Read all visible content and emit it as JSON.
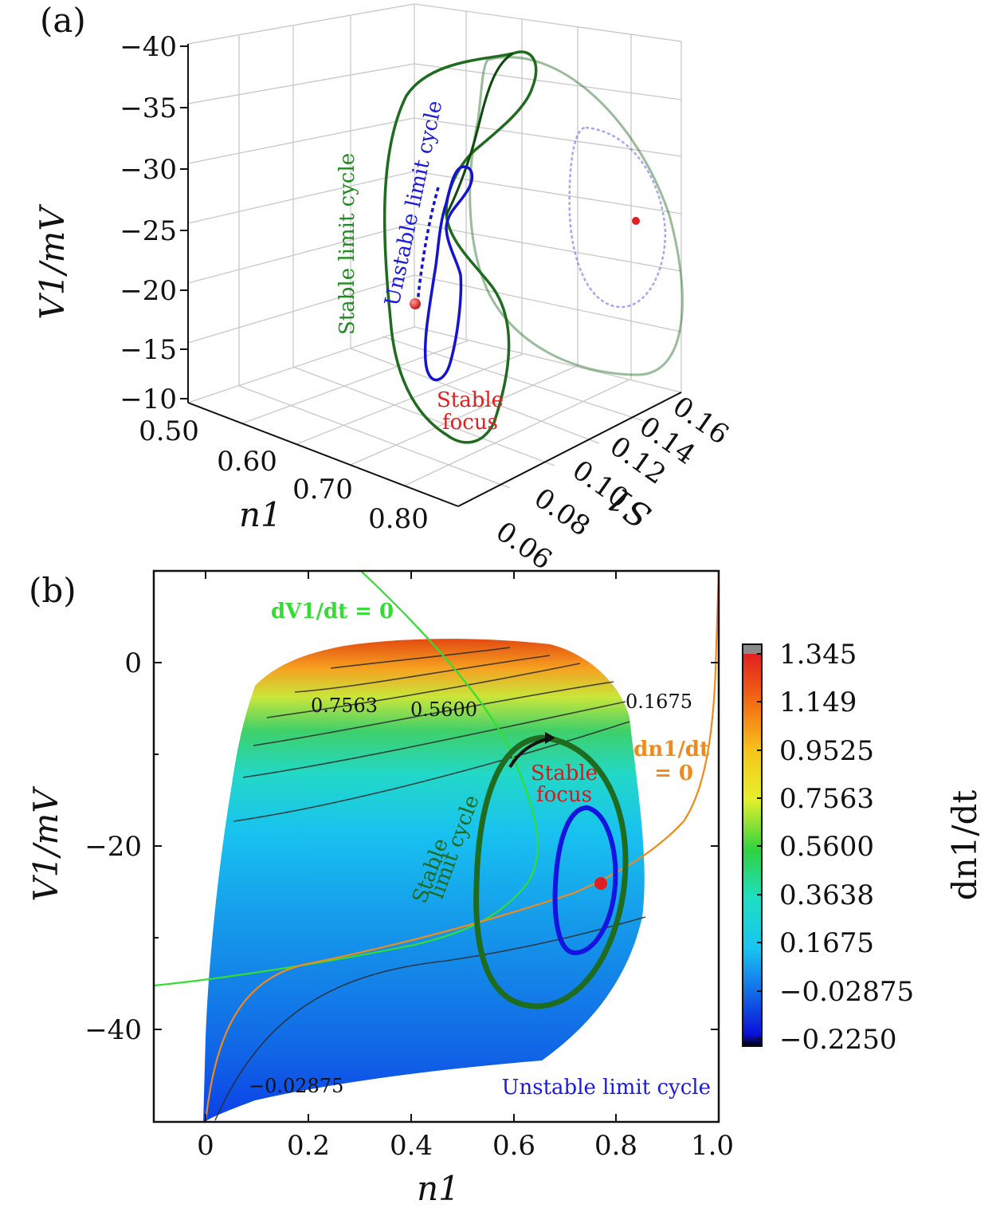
{
  "chart_data": [
    {
      "panel": "(a)",
      "type": "line",
      "projection": "3d",
      "axes": {
        "V1": {
          "label": "V1/mV",
          "ticks": [
            "−40",
            "−35",
            "−30",
            "−25",
            "−20",
            "−15",
            "−10"
          ],
          "range": [
            -40,
            -10
          ]
        },
        "n1": {
          "label": "n1",
          "ticks": [
            "0.50",
            "0.60",
            "0.70",
            "0.80"
          ],
          "range": [
            0.5,
            0.8
          ]
        },
        "S1": {
          "label": "S1",
          "ticks": [
            "0.06",
            "0.08",
            "0.10",
            "0.12",
            "0.14",
            "0.16"
          ],
          "range": [
            0.06,
            0.16
          ]
        }
      },
      "series": [
        {
          "name": "Stable limit cycle",
          "color": "#1f6b1f"
        },
        {
          "name": "Unstable limit cycle",
          "color": "#1f1fd0"
        },
        {
          "name": "Stable focus",
          "color": "#e02020"
        }
      ],
      "annotations": [
        "Stable limit cycle",
        "Unstable limit cycle",
        "Stable",
        "focus"
      ]
    },
    {
      "panel": "(b)",
      "type": "heatmap",
      "xlabel": "n1",
      "ylabel": "V1/mV",
      "colorbar_label": "dn1/dt",
      "xlim": [
        -0.1,
        1.0
      ],
      "ylim": [
        -50,
        10
      ],
      "xticks": [
        "0",
        "0.2",
        "0.4",
        "0.6",
        "0.8",
        "1.0"
      ],
      "yticks": [
        "0",
        "−20",
        "−40"
      ],
      "colorbar_ticks": [
        "1.345",
        "1.149",
        "0.9525",
        "0.7563",
        "0.5600",
        "0.3638",
        "0.1675",
        "−0.02875",
        "−0.2250"
      ],
      "contour_labels": [
        "0.7563",
        "0.5600",
        "0.1675",
        "−0.02875"
      ],
      "nullclines": [
        "dV1/dt = 0",
        "dn1/dt",
        "= 0"
      ],
      "annotations": [
        "Stable",
        "focus",
        "Stable",
        "limit cycle",
        "Unstable limit cycle"
      ],
      "stable_focus": {
        "n1": 0.77,
        "V1": -24
      }
    }
  ],
  "text": {
    "panel_a": "(a)",
    "panel_b": "(b)",
    "a_zlabel": "V1/mV",
    "a_xlabel": "n1",
    "a_slabel": "S1",
    "a_stable_lc": "Stable limit cycle",
    "a_unstable_lc": "Unstable limit cycle",
    "a_focus_1": "Stable",
    "a_focus_2": "focus",
    "b_ylabel": "V1/mV",
    "b_xlabel": "n1",
    "b_cblabel": "dn1/dt",
    "b_dv": "dV1/dt = 0",
    "b_dn_1": "dn1/dt",
    "b_dn_2": "= 0",
    "b_focus_1": "Stable",
    "b_focus_2": "focus",
    "b_slc_1": "Stable",
    "b_slc_2": "limit cycle",
    "b_ulc": "Unstable limit cycle"
  },
  "colors": {
    "stable": "#1f6b1f",
    "unstable": "#1a1ae0",
    "focus": "#e02020",
    "nullcline_v": "#33dd33",
    "nullcline_n": "#f08a1a"
  }
}
